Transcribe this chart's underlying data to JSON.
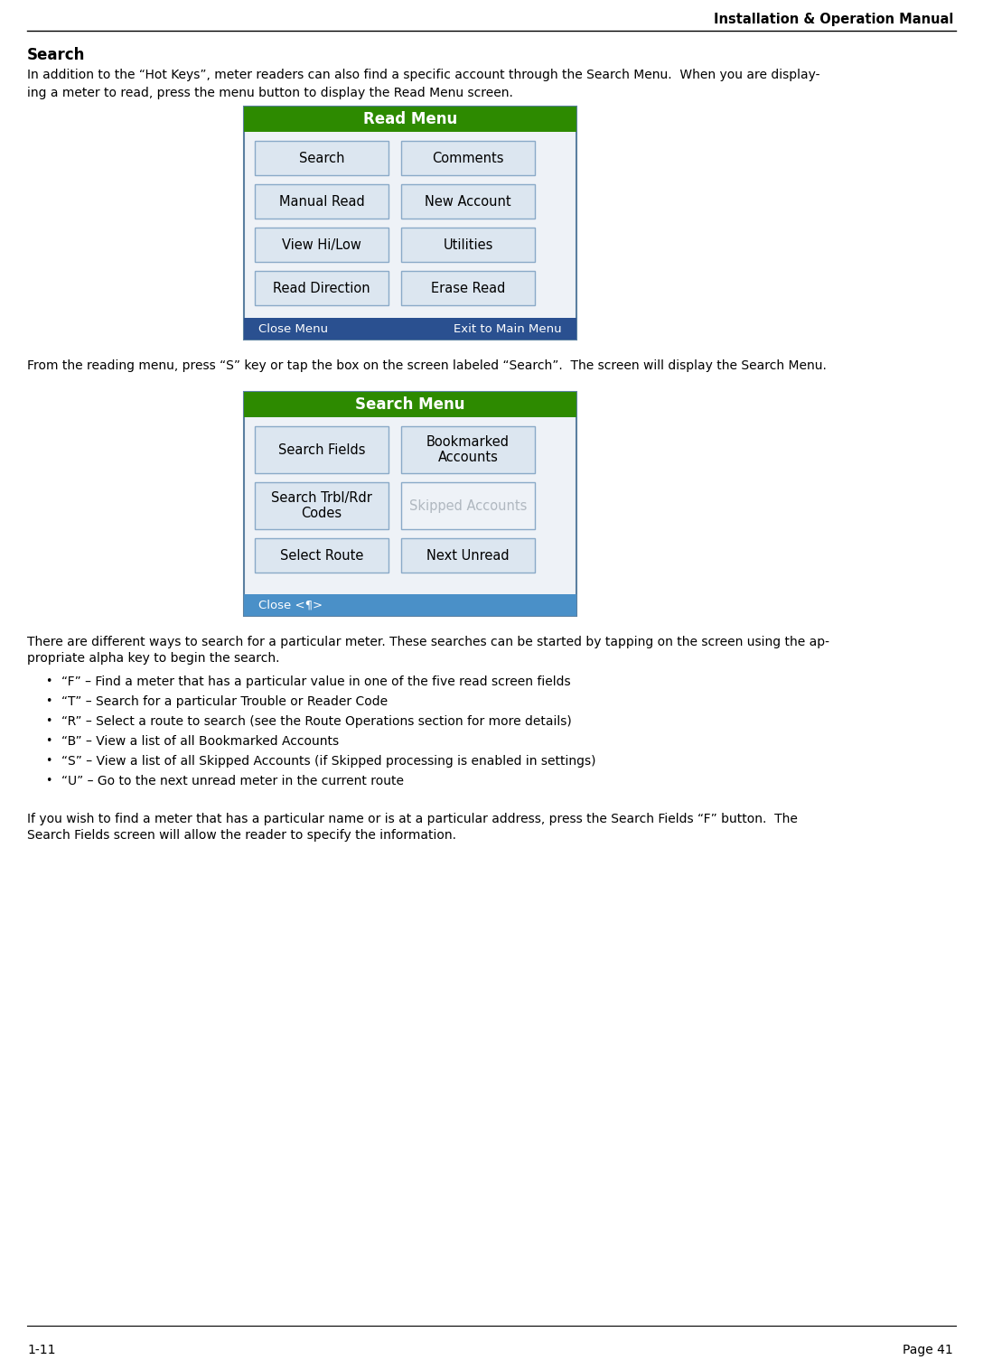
{
  "page_header": "Installation & Operation Manual",
  "page_footer_left": "1-11",
  "page_footer_right": "Page 41",
  "section_title": "Search",
  "para1_line1": "In addition to the “Hot Keys”, meter readers can also find a specific account through the Search Menu.  When you are display-",
  "para1_line2": "ing a meter to read, press the menu button to display the Read Menu screen.",
  "read_menu_title": "Read Menu",
  "read_menu_buttons": [
    [
      "Search",
      "Comments"
    ],
    [
      "Manual Read",
      "New Account"
    ],
    [
      "View Hi/Low",
      "Utilities"
    ],
    [
      "Read Direction",
      "Erase Read"
    ]
  ],
  "read_menu_footer_left": "Close Menu",
  "read_menu_footer_right": "Exit to Main Menu",
  "para2": "From the reading menu, press “S” key or tap the box on the screen labeled “Search”.  The screen will display the Search Menu.",
  "search_menu_title": "Search Menu",
  "search_menu_buttons": [
    [
      "Search Fields",
      "Bookmarked\nAccounts"
    ],
    [
      "Search Trbl/Rdr\nCodes",
      "Skipped Accounts"
    ],
    [
      "Select Route",
      "Next Unread"
    ]
  ],
  "search_menu_footer": "Close <¶>",
  "para3_line1": "There are different ways to search for a particular meter. These searches can be started by tapping on the screen using the ap-",
  "para3_line2": "propriate alpha key to begin the search.",
  "bullet_items": [
    "“F” – Find a meter that has a particular value in one of the five read screen fields",
    "“T” – Search for a particular Trouble or Reader Code",
    "“R” – Select a route to search (see the Route Operations section for more details)",
    "“B” – View a list of all Bookmarked Accounts",
    "“S” – View a list of all Skipped Accounts (if Skipped processing is enabled in settings)",
    "“U” – Go to the next unread meter in the current route"
  ],
  "para4_line1": "If you wish to find a meter that has a particular name or is at a particular address, press the Search Fields “F” button.  The",
  "para4_line2": "Search Fields screen will allow the reader to specify the information.",
  "bg_color": "#ffffff",
  "header_line_color": "#000000",
  "green_header_color": "#2d8a00",
  "button_bg_color": "#dce6f0",
  "button_border_color": "#8aaac8",
  "menu_bg_color": "#eef2f7",
  "menu_border_color": "#5a7fa0",
  "skipped_text_color": "#b0b8c0",
  "footer_bar_color": "#4a90c8",
  "close_menu_color": "#2a5090",
  "text_color": "#000000",
  "title_color": "#000000"
}
